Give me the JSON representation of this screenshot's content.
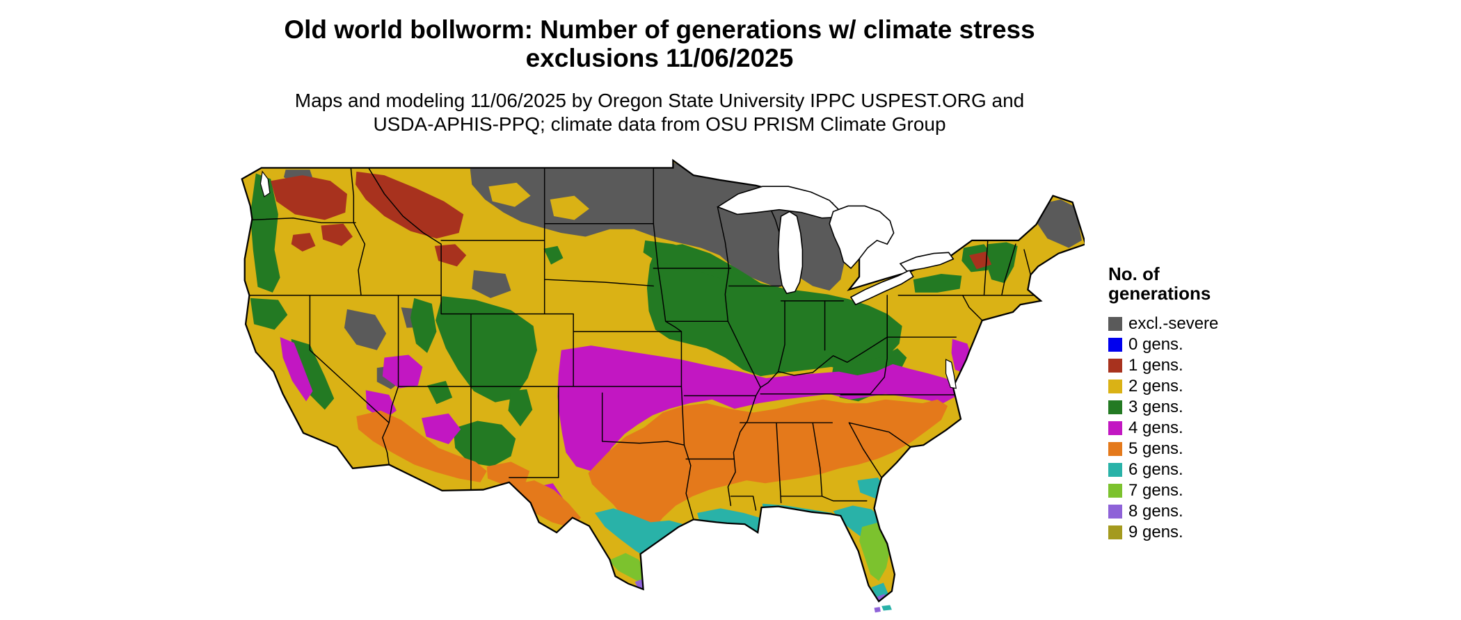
{
  "page": {
    "background": "#ffffff"
  },
  "title": {
    "line1": "Old world bollworm: Number of generations w/ climate stress",
    "line2": "exclusions 11/06/2025"
  },
  "subtitle": {
    "line1": "Maps and modeling 11/06/2025 by Oregon State University IPPC USPEST.ORG and",
    "line2": "USDA-APHIS-PPQ; climate data from OSU PRISM Climate Group"
  },
  "legend": {
    "title_line1": "No. of",
    "title_line2": "generations",
    "items": [
      {
        "label": "excl.-severe",
        "color": "#5a5a5a"
      },
      {
        "label": "0 gens.",
        "color": "#0000ee"
      },
      {
        "label": "1 gens.",
        "color": "#a8321e"
      },
      {
        "label": "2 gens.",
        "color": "#dab215"
      },
      {
        "label": "3 gens.",
        "color": "#237a23"
      },
      {
        "label": "4 gens.",
        "color": "#c217c2"
      },
      {
        "label": "5 gens.",
        "color": "#e4791b"
      },
      {
        "label": "6 gens.",
        "color": "#29b2a8"
      },
      {
        "label": "7 gens.",
        "color": "#7cc22e"
      },
      {
        "label": "8 gens.",
        "color": "#8e62d8"
      },
      {
        "label": "9 gens.",
        "color": "#a49a1e"
      }
    ]
  },
  "map": {
    "outline_color": "#000000",
    "water_color": "#ffffff"
  }
}
